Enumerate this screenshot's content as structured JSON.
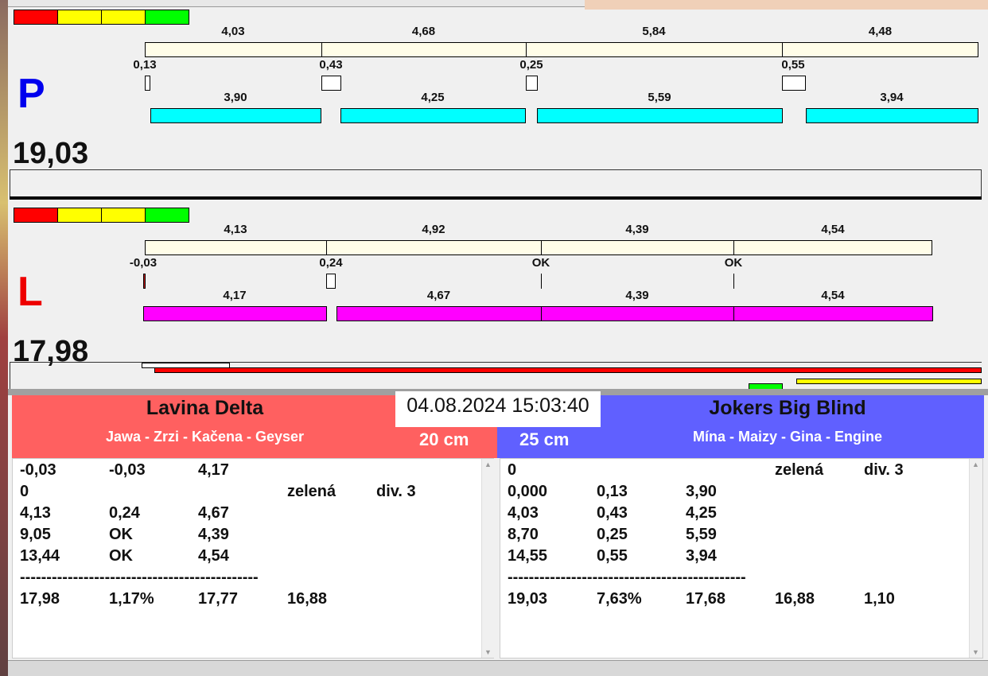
{
  "colors": {
    "red": "#ff0000",
    "yellow": "#ffff00",
    "green": "#00ff00",
    "track": "#fffde8",
    "cyan": "#00ffff",
    "magenta": "#ff00ff",
    "left_header": "#ff6060",
    "right_header": "#6060ff"
  },
  "P": {
    "letter": "P",
    "total": "19,03",
    "track_labels": [
      "4,03",
      "4,68",
      "5,84",
      "4,48"
    ],
    "gap_labels": [
      "0,13",
      "0,43",
      "0,25",
      "0,55"
    ],
    "bar_labels": [
      "3,90",
      "4,25",
      "5,59",
      "3,94"
    ]
  },
  "L": {
    "letter": "L",
    "total": "17,98",
    "track_labels": [
      "4,13",
      "4,92",
      "4,39",
      "4,54"
    ],
    "gap_labels": [
      "-0,03",
      "0,24",
      "OK",
      "OK"
    ],
    "bar_labels": [
      "4,17",
      "4,67",
      "4,39",
      "4,54"
    ]
  },
  "datetime": "04.08.2024 15:03:40",
  "left": {
    "team": "Lavina Delta",
    "dogs": "Jawa - Zrzi - Kačena - Geyser",
    "size": "20 cm",
    "rows": [
      [
        "-0,03",
        "-0,03",
        "4,17",
        "",
        ""
      ],
      [
        "0",
        "",
        "",
        "zelená",
        "div. 3"
      ],
      [
        "4,13",
        "0,24",
        "4,67",
        "",
        ""
      ],
      [
        "9,05",
        "OK",
        "4,39",
        "",
        ""
      ],
      [
        "13,44",
        "OK",
        "4,54",
        "",
        ""
      ],
      [
        "---------------------------------------------",
        "",
        "",
        "",
        ""
      ],
      [
        "17,98",
        "1,17%",
        "17,77",
        "16,88",
        ""
      ]
    ]
  },
  "right": {
    "team": "Jokers Big Blind",
    "dogs": "Mína - Maizy - Gina - Engine",
    "size": "25 cm",
    "rows": [
      [
        "0",
        "",
        "",
        "zelená",
        "div. 3"
      ],
      [
        "0,000",
        "0,13",
        "3,90",
        "",
        ""
      ],
      [
        "4,03",
        "0,43",
        "4,25",
        "",
        ""
      ],
      [
        "8,70",
        "0,25",
        "5,59",
        "",
        ""
      ],
      [
        "14,55",
        "0,55",
        "3,94",
        "",
        ""
      ],
      [
        "---------------------------------------------",
        "",
        "",
        "",
        ""
      ],
      [
        "19,03",
        "7,63%",
        "17,68",
        "16,88",
        "1,10"
      ]
    ]
  }
}
